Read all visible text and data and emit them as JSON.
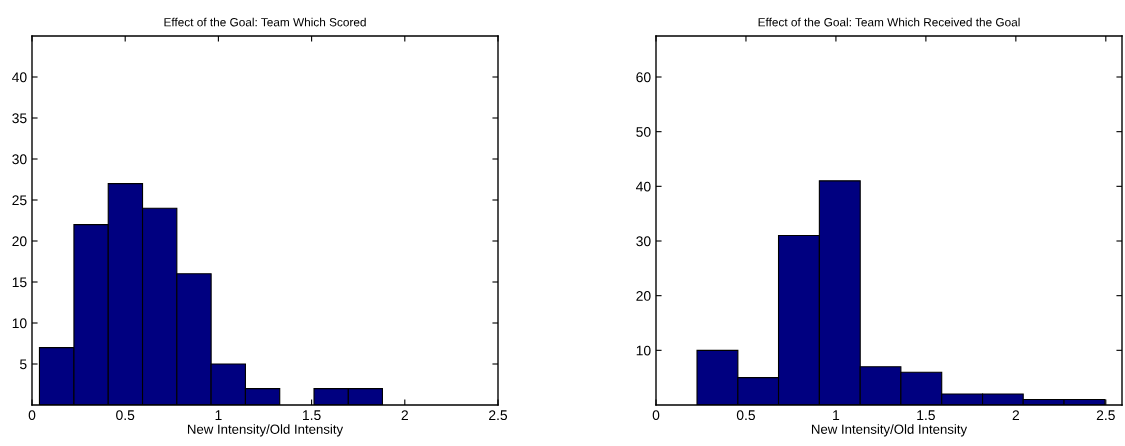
{
  "chart_data": [
    {
      "type": "histogram",
      "title": "Effect of the Goal: Team Which Scored",
      "xlabel": "New Intensity/Old Intensity",
      "color": "#000080",
      "bins": [
        0.04,
        0.225,
        0.409,
        0.593,
        0.777,
        0.961,
        1.145,
        1.329,
        1.513,
        1.697,
        1.88
      ],
      "values": [
        7,
        22,
        27,
        24,
        16,
        5,
        2,
        0,
        2,
        2
      ],
      "xlim": [
        0,
        2.5
      ],
      "xticks": [
        0,
        0.5,
        1,
        1.5,
        2,
        2.5
      ],
      "ylim": [
        0,
        45
      ],
      "yticks": [
        5,
        10,
        15,
        20,
        25,
        30,
        35,
        40
      ],
      "grid": false
    },
    {
      "type": "histogram",
      "title": "Effect of the Goal: Team Which Received the Goal",
      "xlabel": "New Intensity/Old Intensity",
      "color": "#000080",
      "bins": [
        0.228,
        0.455,
        0.681,
        0.908,
        1.135,
        1.361,
        1.588,
        1.815,
        2.041,
        2.268,
        2.495
      ],
      "values": [
        10,
        5,
        31,
        41,
        7,
        6,
        2,
        2,
        1,
        1
      ],
      "xlim": [
        0,
        2.59
      ],
      "xticks": [
        0,
        0.5,
        1,
        1.5,
        2,
        2.5
      ],
      "ylim": [
        0,
        67.5
      ],
      "yticks": [
        10,
        20,
        30,
        40,
        50,
        60
      ],
      "grid": false
    }
  ]
}
